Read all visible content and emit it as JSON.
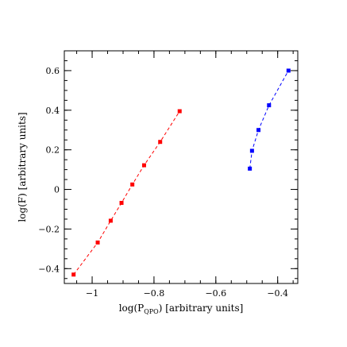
{
  "chart_data": {
    "type": "scatter",
    "xlabel_main": "log(P",
    "xlabel_sub": "QPO",
    "xlabel_tail": ") [arbitrary units]",
    "ylabel": "log(F) [arbitrary units]",
    "xlim": [
      -1.09,
      -0.335
    ],
    "ylim": [
      -0.475,
      0.7
    ],
    "xticks": [
      {
        "value": -1.0,
        "label": "−1"
      },
      {
        "value": -0.8,
        "label": "−0.8"
      },
      {
        "value": -0.6,
        "label": "−0.6"
      },
      {
        "value": -0.4,
        "label": "−0.4"
      }
    ],
    "yticks": [
      {
        "value": -0.4,
        "label": "−0.4"
      },
      {
        "value": -0.2,
        "label": "−0.2"
      },
      {
        "value": 0.0,
        "label": "0"
      },
      {
        "value": 0.2,
        "label": "0.2"
      },
      {
        "value": 0.4,
        "label": "0.4"
      },
      {
        "value": 0.6,
        "label": "0.6"
      }
    ],
    "x_minor_step": 0.05,
    "y_minor_step": 0.05,
    "series": [
      {
        "color": "#ff0000",
        "points": [
          {
            "x": -1.06,
            "y": -0.43
          },
          {
            "x": -0.982,
            "y": -0.268
          },
          {
            "x": -0.94,
            "y": -0.158
          },
          {
            "x": -0.905,
            "y": -0.068
          },
          {
            "x": -0.87,
            "y": 0.025
          },
          {
            "x": -0.832,
            "y": 0.122
          },
          {
            "x": -0.78,
            "y": 0.24
          },
          {
            "x": -0.717,
            "y": 0.395
          }
        ]
      },
      {
        "color": "#0000ff",
        "points": [
          {
            "x": -0.49,
            "y": 0.105
          },
          {
            "x": -0.483,
            "y": 0.195
          },
          {
            "x": -0.462,
            "y": 0.3
          },
          {
            "x": -0.428,
            "y": 0.425
          },
          {
            "x": -0.365,
            "y": 0.6
          }
        ]
      }
    ],
    "grid": false,
    "legend": "none"
  }
}
